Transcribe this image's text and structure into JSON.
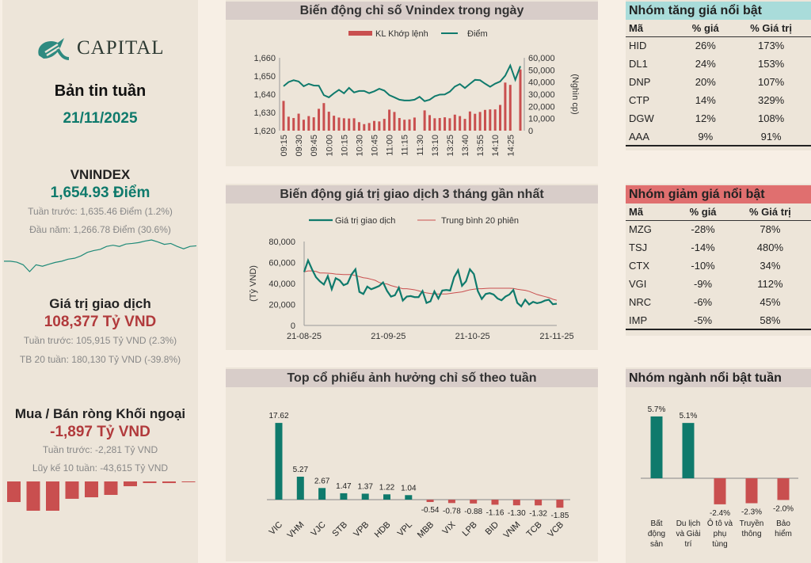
{
  "colors": {
    "teal": "#0f7a6c",
    "red": "#c94f4f",
    "accent_red": "#b13a3c",
    "gainers_header": "#a9dcda",
    "losers_header": "#e06f6f"
  },
  "left": {
    "logo_text": "CAPITAL",
    "title": "Bản tin tuần",
    "date": "21/11/2025",
    "vnindex": {
      "label": "VNINDEX",
      "value": "1,654.93 Điểm",
      "prev_week": "Tuần trước: 1,635.46 Điểm (1.2%)",
      "ytd": "Đầu năm: 1,266.78 Điểm (30.6%)",
      "sparkline": [
        1267,
        1267,
        1244,
        1177,
        1005,
        1177,
        1140,
        1192,
        1237,
        1267,
        1319,
        1342,
        1401,
        1491,
        1536,
        1566,
        1640,
        1670,
        1640,
        1700,
        1715,
        1737,
        1775,
        1804,
        1752,
        1692,
        1715,
        1640,
        1580,
        1640,
        1655
      ]
    },
    "liquidity": {
      "label": "Giá trị giao dịch",
      "value": "108,377 Tỷ VND",
      "prev_week": "Tuần trước: 105,915 Tỷ VND (2.3%)",
      "avg20": "TB 20 tuần: 180,130 Tỷ VND (-39.8%)"
    },
    "foreign": {
      "label": "Mua / Bán ròng Khối ngoại",
      "value": "-1,897 Tỷ VND",
      "prev_week": "Tuần trước: -2,281 Tỷ VND",
      "cum10": "Lũy kế 10 tuần: -43,615 Tỷ VND",
      "bars": [
        -1897,
        -2700,
        -2700,
        -1600,
        -1460,
        -1240,
        -440,
        -150,
        -150,
        -40
      ]
    }
  },
  "chart_data": [
    {
      "type": "bar+line",
      "title": "Biến động chỉ số Vnindex trong ngày",
      "legend": [
        "KL Khớp lệnh",
        "Điểm"
      ],
      "legend_position": "top",
      "y2label": "(Nghìn cp)",
      "ylim": [
        1620,
        1660
      ],
      "y2lim": [
        0,
        60000
      ],
      "yticks": [
        "1,620",
        "1,630",
        "1,640",
        "1,650",
        "1,660"
      ],
      "y2ticks": [
        "0",
        "10,000",
        "20,000",
        "30,000",
        "40,000",
        "50,000",
        "60,000"
      ],
      "xtick_labels": [
        "09:15",
        "09:30",
        "09:45",
        "10:00",
        "10:15",
        "10:30",
        "10:45",
        "11:00",
        "11:15",
        "11:30",
        "13:10",
        "13:25",
        "13:40",
        "13:55",
        "14:10",
        "14:25"
      ],
      "volume": [
        24.5,
        11.5,
        10.4,
        14,
        9,
        12,
        11,
        18,
        22.7,
        15.6,
        12.3,
        10.8,
        10.2,
        10,
        10.2,
        7,
        5.4,
        6.3,
        8,
        7.6,
        9.7,
        17.3,
        15.4,
        10.4,
        9,
        9.3,
        10.8,
        0,
        16.7,
        12.8,
        10.2,
        10.4,
        11,
        10.2,
        13.2,
        12,
        9.7,
        15.8,
        13.9,
        15.4,
        17.1,
        17.5,
        17.5,
        21.2,
        39.6,
        37.7,
        0,
        50.4
      ],
      "index": [
        1644.4,
        1646.7,
        1647.7,
        1647,
        1644.4,
        1645.7,
        1644.8,
        1644.7,
        1639.5,
        1638.3,
        1640.5,
        1642.4,
        1640.5,
        1643.5,
        1641,
        1641.8,
        1641.8,
        1640.6,
        1641.6,
        1643,
        1642,
        1639.5,
        1638.3,
        1637,
        1636.6,
        1636.6,
        1637,
        1638.6,
        1636.2,
        1637,
        1638.9,
        1639.8,
        1639.9,
        1641.4,
        1644.2,
        1645.6,
        1643.4,
        1645.7,
        1647.9,
        1647.7,
        1645.8,
        1644.1,
        1645.8,
        1647,
        1650.2,
        1655.8,
        1647.9,
        1655.4
      ]
    },
    {
      "type": "line",
      "title": "Biến động giá trị giao dịch 3 tháng gần nhất",
      "legend": [
        "Giá trị giao dịch",
        "Trung bình 20 phiên"
      ],
      "legend_position": "top",
      "ylabel": "(Tỷ VND)",
      "ylim": [
        0,
        80000
      ],
      "yticks": [
        "0",
        "20,000",
        "40,000",
        "60,000",
        "80,000"
      ],
      "xtick_labels": [
        "21-08-25",
        "21-09-25",
        "21-10-25",
        "21-11-25"
      ],
      "series": [
        {
          "name": "Giá trị giao dịch",
          "values": [
            51000,
            62000,
            53500,
            46000,
            42000,
            39000,
            47000,
            34500,
            45000,
            43000,
            38400,
            40000,
            48500,
            53500,
            32000,
            30000,
            37000,
            34500,
            36000,
            37600,
            41000,
            33000,
            27500,
            28800,
            36000,
            23700,
            27500,
            28000,
            27000,
            27000,
            32800,
            21500,
            23000,
            32500,
            25700,
            33300,
            33800,
            33300,
            46000,
            52700,
            37800,
            42000,
            53500,
            49000,
            32800,
            25200,
            30000,
            30800,
            29500,
            25700,
            24000,
            27500,
            29500,
            33800,
            21500,
            18200,
            24500,
            20000,
            22500,
            21200,
            22000,
            23700,
            24500,
            20200,
            20700
          ]
        },
        {
          "name": "Trung bình 20 phiên",
          "values": [
            51000,
            52000,
            52000,
            51500,
            50000,
            50000,
            49800,
            49500,
            49000,
            48800,
            48500,
            48500,
            48500,
            47500,
            46500,
            45500,
            45000,
            44000,
            43000,
            41000,
            40000,
            39500,
            38000,
            37000,
            36000,
            35000,
            35000,
            34500,
            34000,
            33000,
            32000,
            31000,
            30500,
            30000,
            30000,
            30000,
            30000,
            30500,
            31000,
            31500,
            32000,
            33000,
            34000,
            34500,
            35000,
            35000,
            35300,
            35500,
            35500,
            35500,
            35500,
            35500,
            35500,
            35300,
            34500,
            34000,
            33500,
            32500,
            31000,
            29500,
            28500,
            27500,
            26500,
            25000,
            24000
          ]
        }
      ]
    },
    {
      "type": "bar",
      "title": "Top cổ phiếu ảnh hưởng chỉ số theo tuần",
      "categories": [
        "VIC",
        "VHM",
        "VJC",
        "STB",
        "VPB",
        "HDB",
        "VPL",
        "MBB",
        "VIX",
        "LPB",
        "BID",
        "VNM",
        "TCB",
        "VCB"
      ],
      "values": [
        17.62,
        5.27,
        2.67,
        1.47,
        1.37,
        1.22,
        1.04,
        -0.54,
        -0.78,
        -0.88,
        -1.16,
        -1.3,
        -1.32,
        -1.85
      ],
      "labels": [
        "17.62",
        "5.27",
        "2.67",
        "1.47",
        "1.37",
        "1.22",
        "1.04",
        "-0.54",
        "-0.78",
        "-0.88",
        "-1.16",
        "-1.30",
        "-1.32",
        "-1.85"
      ]
    },
    {
      "type": "bar",
      "title": "Nhóm ngành nổi bật tuần",
      "categories": [
        [
          "Bất",
          "động",
          "sản"
        ],
        [
          "Du lịch",
          "và Giải",
          "trí"
        ],
        [
          "Ô tô và",
          "phụ",
          "tùng"
        ],
        [
          "Truyền",
          "thông"
        ],
        [
          "Bảo",
          "hiểm"
        ]
      ],
      "values": [
        5.7,
        5.1,
        -2.4,
        -2.3,
        -2.0
      ],
      "labels": [
        "5.7%",
        "5.1%",
        "-2.4%",
        "-2.3%",
        "-2.0%"
      ]
    }
  ],
  "gainers": {
    "title": "Nhóm tăng giá nổi bật",
    "headers": [
      "Mã",
      "% giá",
      "% Giá trị"
    ],
    "rows": [
      [
        "HID",
        "26%",
        "173%"
      ],
      [
        "DL1",
        "24%",
        "153%"
      ],
      [
        "DNP",
        "20%",
        "107%"
      ],
      [
        "CTP",
        "14%",
        "329%"
      ],
      [
        "DGW",
        "12%",
        "108%"
      ],
      [
        "AAA",
        "9%",
        "91%"
      ]
    ]
  },
  "losers": {
    "title": "Nhóm giảm giá nổi bật",
    "headers": [
      "Mã",
      "% giá",
      "% Giá trị"
    ],
    "rows": [
      [
        "MZG",
        "-28%",
        "78%"
      ],
      [
        "TSJ",
        "-14%",
        "480%"
      ],
      [
        "CTX",
        "-10%",
        "34%"
      ],
      [
        "VGI",
        "-9%",
        "112%"
      ],
      [
        "NRC",
        "-6%",
        "45%"
      ],
      [
        "IMP",
        "-5%",
        "58%"
      ]
    ]
  }
}
